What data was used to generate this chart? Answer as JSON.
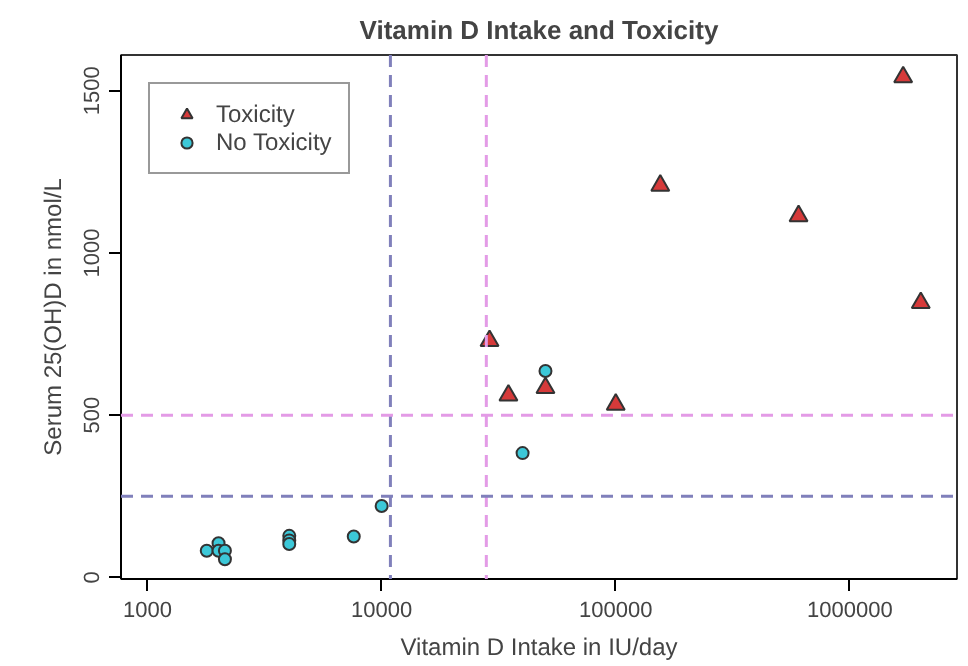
{
  "chart_data": {
    "type": "scatter",
    "title": "Vitamin D Intake and Toxicity",
    "xlabel": "Vitamin D Intake in IU/day",
    "ylabel": "Serum 25(OH)D in nmol/L",
    "log": "x",
    "xlim": [
      770,
      2870000
    ],
    "ylim": [
      -5,
      1610
    ],
    "xticks": [
      1000,
      10000,
      100000,
      1000000
    ],
    "yticks": [
      0,
      500,
      1000,
      1500
    ],
    "grid": false,
    "legend": "top left",
    "series": [
      {
        "name": "Toxicity",
        "color": "#d63a3a",
        "marker": "triangle",
        "x": [
          1690000,
          155000,
          604000,
          2010000,
          28900,
          34800,
          50100,
          100000
        ],
        "values": [
          1542,
          1208,
          1114,
          846,
          729,
          561,
          584,
          533
        ]
      },
      {
        "name": "No Toxicity",
        "color": "#3cc8d8",
        "marker": "circle",
        "x": [
          50100,
          40000,
          10000,
          7600,
          4030,
          4030,
          4030,
          1790,
          2010,
          2010,
          2140,
          2140
        ],
        "values": [
          636,
          383,
          220,
          126,
          128,
          114,
          103,
          82,
          105,
          82,
          82,
          56
        ]
      }
    ],
    "ref_lines": [
      {
        "axis": "x",
        "value": 10900,
        "color": "#8080bb",
        "line_style": "dashed"
      },
      {
        "axis": "x",
        "value": 28000,
        "color": "#e39be6",
        "line_style": "dashed"
      },
      {
        "axis": "y",
        "value": 500,
        "color": "#e39be6",
        "line_style": "dashed"
      },
      {
        "axis": "y",
        "value": 250,
        "color": "#8080bb",
        "line_style": "dashed"
      }
    ]
  }
}
